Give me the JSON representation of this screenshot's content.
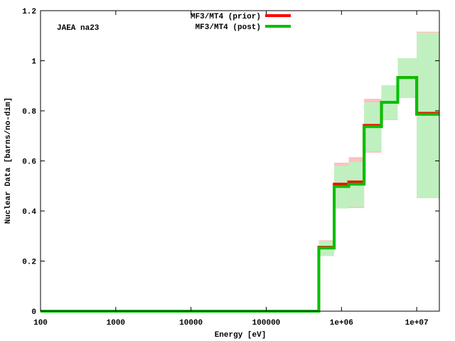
{
  "chart_data": {
    "type": "line",
    "title": "",
    "annotation": "JAEA na23",
    "xlabel": "Energy [eV]",
    "ylabel": "Nuclear Data [barns/no-dim]",
    "xscale": "log",
    "xlim": [
      100,
      20000000
    ],
    "ylim": [
      0,
      1.2
    ],
    "xticks": [
      {
        "v": 100,
        "label": "100"
      },
      {
        "v": 1000,
        "label": "1000"
      },
      {
        "v": 10000,
        "label": "10000"
      },
      {
        "v": 100000,
        "label": "100000"
      },
      {
        "v": 1000000,
        "label": "1e+06"
      },
      {
        "v": 10000000,
        "label": "1e+07"
      }
    ],
    "yticks": [
      {
        "v": 0,
        "label": "0"
      },
      {
        "v": 0.2,
        "label": "0.2"
      },
      {
        "v": 0.4,
        "label": "0.4"
      },
      {
        "v": 0.6,
        "label": "0.6"
      },
      {
        "v": 0.8,
        "label": "0.8"
      },
      {
        "v": 1.0,
        "label": "1"
      },
      {
        "v": 1.2,
        "label": "1.2"
      }
    ],
    "legend_position": "top-center",
    "bin_edges": [
      100,
      500000,
      800000,
      1250000,
      2000000,
      3400000,
      5600000,
      10000000,
      20000000
    ],
    "series": [
      {
        "name": "MF3/MT4 (prior)",
        "color": "#ff0000",
        "band_color": "#ffc0c0",
        "values": [
          0,
          0.255,
          0.507,
          0.516,
          0.742,
          0.834,
          0.933,
          0.79
        ],
        "lower": [
          0,
          0.22,
          0.41,
          0.412,
          0.633,
          0.763,
          0.851,
          0.451
        ],
        "upper": [
          0,
          0.283,
          0.593,
          0.615,
          0.848,
          0.902,
          1.01,
          1.116
        ]
      },
      {
        "name": "MF3/MT4 (post)",
        "color": "#00c000",
        "band_color": "#c0f0c0",
        "values": [
          0,
          0.252,
          0.498,
          0.507,
          0.737,
          0.834,
          0.933,
          0.786
        ],
        "lower": [
          0,
          0.22,
          0.41,
          0.417,
          0.638,
          0.766,
          0.851,
          0.451
        ],
        "upper": [
          0,
          0.28,
          0.58,
          0.596,
          0.834,
          0.902,
          1.01,
          1.112
        ]
      }
    ]
  }
}
